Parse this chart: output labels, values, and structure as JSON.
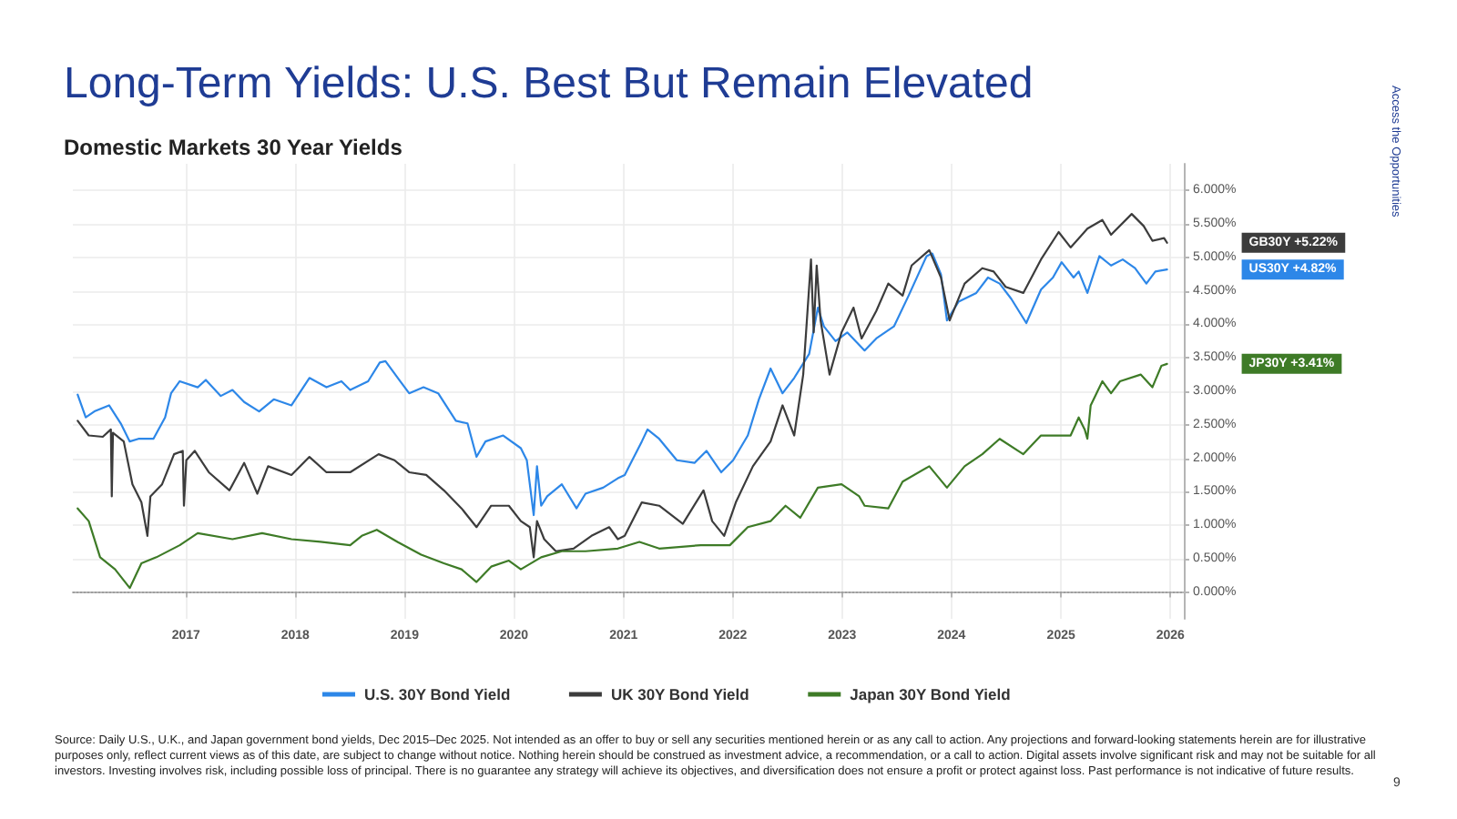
{
  "chart_data": {
    "type": "line",
    "title": "Long-Term Yields: U.S. Best But Remain Elevated",
    "subtitle": "Domestic Markets 30 Year Yields",
    "xlim": [
      "2015-12-20",
      "2026-02-15"
    ],
    "xticks": [
      "2017",
      "2018",
      "2019",
      "2020",
      "2021",
      "2022",
      "2023",
      "2024",
      "2025",
      "2026"
    ],
    "ylim": [
      -0.4,
      6.4
    ],
    "yticks": [
      {
        "value": 0,
        "label": "0.000%"
      },
      {
        "value": 0.5,
        "label": "0.500%"
      },
      {
        "value": 1,
        "label": "1.000%"
      },
      {
        "value": 1.5,
        "label": "1.500%"
      },
      {
        "value": 2,
        "label": "2.000%"
      },
      {
        "value": 2.5,
        "label": "2.500%"
      },
      {
        "value": 3,
        "label": "3.000%"
      },
      {
        "value": 3.5,
        "label": "3.500%"
      },
      {
        "value": 4,
        "label": "4.000%"
      },
      {
        "value": 4.5,
        "label": "4.500%"
      },
      {
        "value": 5,
        "label": "5.000%"
      },
      {
        "value": 5.5,
        "label": "5.500%"
      },
      {
        "value": 6,
        "label": "6.000%"
      }
    ],
    "grid": true,
    "legend": "bottom",
    "marker": "none",
    "series": [
      {
        "name": "U.S. 30Y Bond Yield",
        "color": "#2d87e8",
        "x": [
          "2016-01-05",
          "2016-02-01",
          "2016-03-01",
          "2016-04-19",
          "2016-05-28",
          "2016-06-27",
          "2016-07-26",
          "2016-09-14",
          "2016-10-23",
          "2016-11-12",
          "2016-12-11",
          "2017-02-09",
          "2017-03-08",
          "2017-04-27",
          "2017-06-05",
          "2017-07-14",
          "2017-09-02",
          "2017-10-21",
          "2017-12-19",
          "2018-02-17",
          "2018-04-15",
          "2018-06-04",
          "2018-07-03",
          "2018-09-01",
          "2018-10-10",
          "2018-10-29",
          "2018-12-17",
          "2019-01-16",
          "2019-03-05",
          "2019-04-23",
          "2019-06-21",
          "2019-07-30",
          "2019-08-29",
          "2019-09-28",
          "2019-11-26",
          "2020-01-24",
          "2020-02-13",
          "2020-03-07",
          "2020-03-18",
          "2020-04-01",
          "2020-04-21",
          "2020-06-09",
          "2020-07-28",
          "2020-08-27",
          "2020-10-25",
          "2020-12-13",
          "2021-01-05",
          "2021-03-03",
          "2021-03-22",
          "2021-04-30",
          "2021-06-28",
          "2021-08-26",
          "2021-10-05",
          "2021-11-23",
          "2022-01-02",
          "2022-02-20",
          "2022-03-29",
          "2022-05-07",
          "2022-06-16",
          "2022-07-25",
          "2022-09-13",
          "2022-10-12",
          "2022-11-01",
          "2022-12-10",
          "2023-01-18",
          "2023-03-17",
          "2023-04-25",
          "2023-06-23",
          "2023-08-11",
          "2023-10-10",
          "2023-10-29",
          "2023-11-27",
          "2023-12-17",
          "2024-01-25",
          "2024-03-24",
          "2024-05-02",
          "2024-06-10",
          "2024-07-19",
          "2024-09-07",
          "2024-10-26",
          "2024-12-05",
          "2025-01-03",
          "2025-02-12",
          "2025-03-01",
          "2025-03-30",
          "2025-05-09",
          "2025-06-17",
          "2025-07-26",
          "2025-09-05",
          "2025-10-13",
          "2025-11-12",
          "2025-12-21"
        ],
        "values": [
          2.95,
          2.61,
          2.7,
          2.79,
          2.52,
          2.25,
          2.29,
          2.29,
          2.61,
          2.97,
          3.15,
          3.06,
          3.17,
          2.93,
          3.02,
          2.84,
          2.7,
          2.88,
          2.79,
          3.2,
          3.06,
          3.15,
          3.02,
          3.15,
          3.43,
          3.45,
          3.15,
          2.97,
          3.06,
          2.97,
          2.56,
          2.52,
          2.02,
          2.25,
          2.34,
          2.15,
          1.97,
          1.15,
          1.88,
          1.29,
          1.43,
          1.61,
          1.25,
          1.47,
          1.56,
          1.7,
          1.75,
          2.25,
          2.43,
          2.29,
          1.97,
          1.93,
          2.11,
          1.79,
          1.97,
          2.34,
          2.88,
          3.34,
          2.97,
          3.2,
          3.56,
          4.25,
          3.97,
          3.75,
          3.88,
          3.61,
          3.79,
          3.97,
          4.43,
          5.02,
          5.06,
          4.75,
          4.06,
          4.34,
          4.47,
          4.7,
          4.61,
          4.38,
          4.02,
          4.52,
          4.7,
          4.93,
          4.7,
          4.79,
          4.47,
          5.02,
          4.88,
          4.97,
          4.84,
          4.61,
          4.79,
          4.82
        ]
      },
      {
        "name": "UK 30Y Bond Yield",
        "color": "#3c3c3c",
        "x": [
          "2016-01-05",
          "2016-02-11",
          "2016-03-29",
          "2016-04-25",
          "2016-04-28",
          "2016-05-02",
          "2016-06-07",
          "2016-07-06",
          "2016-08-05",
          "2016-08-25",
          "2016-09-04",
          "2016-10-13",
          "2016-11-22",
          "2016-12-21",
          "2016-12-25",
          "2017-01-02",
          "2017-01-30",
          "2017-03-18",
          "2017-05-26",
          "2017-07-14",
          "2017-08-27",
          "2017-10-02",
          "2017-12-19",
          "2018-02-17",
          "2018-04-15",
          "2018-07-03",
          "2018-10-06",
          "2018-11-28",
          "2019-01-16",
          "2019-03-14",
          "2019-05-12",
          "2019-07-10",
          "2019-08-29",
          "2019-10-17",
          "2019-12-15",
          "2020-01-24",
          "2020-02-23",
          "2020-03-07",
          "2020-03-18",
          "2020-04-11",
          "2020-05-20",
          "2020-07-18",
          "2020-09-16",
          "2020-11-14",
          "2020-12-13",
          "2021-01-05",
          "2021-03-03",
          "2021-04-30",
          "2021-07-18",
          "2021-09-25",
          "2021-10-24",
          "2021-12-03",
          "2022-01-11",
          "2022-03-09",
          "2022-05-07",
          "2022-06-16",
          "2022-07-25",
          "2022-08-24",
          "2022-09-19",
          "2022-09-28",
          "2022-10-08",
          "2022-10-21",
          "2022-11-20",
          "2022-12-30",
          "2023-02-08",
          "2023-03-07",
          "2023-04-25",
          "2023-06-04",
          "2023-07-22",
          "2023-08-21",
          "2023-10-19",
          "2023-11-27",
          "2023-12-26",
          "2024-02-14",
          "2024-04-13",
          "2024-05-21",
          "2024-06-30",
          "2024-08-28",
          "2024-10-26",
          "2024-12-24",
          "2025-02-02",
          "2025-03-30",
          "2025-05-19",
          "2025-06-17",
          "2025-08-25",
          "2025-10-04",
          "2025-11-02",
          "2025-12-11",
          "2025-12-21"
        ],
        "values": [
          2.56,
          2.34,
          2.32,
          2.43,
          1.43,
          2.38,
          2.25,
          1.61,
          1.34,
          0.84,
          1.43,
          1.61,
          2.06,
          2.11,
          1.29,
          1.97,
          2.11,
          1.79,
          1.52,
          1.93,
          1.47,
          1.88,
          1.75,
          2.02,
          1.79,
          1.79,
          2.06,
          1.97,
          1.79,
          1.75,
          1.52,
          1.25,
          0.97,
          1.29,
          1.29,
          1.06,
          0.97,
          0.52,
          1.06,
          0.79,
          0.61,
          0.65,
          0.84,
          0.97,
          0.79,
          0.84,
          1.34,
          1.29,
          1.02,
          1.52,
          1.06,
          0.84,
          1.34,
          1.88,
          2.25,
          2.79,
          2.34,
          3.25,
          4.97,
          3.88,
          4.88,
          4.06,
          3.25,
          3.88,
          4.25,
          3.79,
          4.2,
          4.61,
          4.43,
          4.88,
          5.11,
          4.7,
          4.06,
          4.61,
          4.84,
          4.79,
          4.56,
          4.47,
          4.97,
          5.38,
          5.15,
          5.43,
          5.56,
          5.34,
          5.65,
          5.47,
          5.25,
          5.29,
          5.22
        ]
      },
      {
        "name": "Japan 30Y Bond Yield",
        "color": "#3e7b27",
        "x": [
          "2016-01-05",
          "2016-02-11",
          "2016-03-20",
          "2016-05-09",
          "2016-06-27",
          "2016-08-05",
          "2016-09-24",
          "2016-12-11",
          "2017-02-09",
          "2017-06-05",
          "2017-09-12",
          "2017-12-19",
          "2018-03-26",
          "2018-07-03",
          "2018-08-11",
          "2018-09-30",
          "2018-12-08",
          "2019-02-25",
          "2019-05-12",
          "2019-07-10",
          "2019-08-29",
          "2019-10-17",
          "2019-12-15",
          "2020-01-24",
          "2020-04-01",
          "2020-06-09",
          "2020-08-27",
          "2020-12-13",
          "2021-02-23",
          "2021-04-30",
          "2021-09-16",
          "2021-12-22",
          "2022-02-20",
          "2022-05-07",
          "2022-06-26",
          "2022-08-14",
          "2022-10-12",
          "2022-12-30",
          "2023-02-27",
          "2023-03-17",
          "2023-06-04",
          "2023-07-22",
          "2023-10-19",
          "2023-12-17",
          "2024-02-14",
          "2024-04-13",
          "2024-06-10",
          "2024-08-28",
          "2024-10-26",
          "2025-02-02",
          "2025-03-01",
          "2025-03-21",
          "2025-03-30",
          "2025-04-10",
          "2025-05-19",
          "2025-06-17",
          "2025-07-17",
          "2025-09-24",
          "2025-11-02",
          "2025-12-02",
          "2025-12-21"
        ],
        "values": [
          1.25,
          1.06,
          0.52,
          0.34,
          0.06,
          0.43,
          0.52,
          0.7,
          0.88,
          0.79,
          0.88,
          0.79,
          0.75,
          0.7,
          0.84,
          0.93,
          0.75,
          0.56,
          0.43,
          0.34,
          0.15,
          0.38,
          0.47,
          0.34,
          0.52,
          0.61,
          0.61,
          0.65,
          0.75,
          0.65,
          0.7,
          0.7,
          0.97,
          1.06,
          1.29,
          1.11,
          1.56,
          1.61,
          1.43,
          1.29,
          1.25,
          1.65,
          1.88,
          1.56,
          1.88,
          2.06,
          2.29,
          2.06,
          2.34,
          2.34,
          2.61,
          2.43,
          2.29,
          2.79,
          3.15,
          2.97,
          3.15,
          3.25,
          3.06,
          3.38,
          3.41
        ]
      }
    ],
    "ref_lines": [
      {
        "axis": "y",
        "value": 0,
        "color": "#9e9e9e",
        "line_style": "dotted"
      }
    ],
    "annotations": [
      "Access the Opportunities",
      "Source: Daily U.S., U.K., and Japan government bond yields, Dec 2015–Dec 2025. Not intended as an offer to buy or sell any securities mentioned herein or as any call to action. Any projections and forward-looking statements herein are for illustrative purposes only, reflect current views as of this date, are subject to change without notice. Nothing herein should be construed as investment advice, a recommendation, or a call to action. Digital assets involve significant risk and may not be suitable for all investors. Investing involves risk, including possible loss of principal. There is no guarantee any strategy will achieve its objectives, and diversification does not ensure a profit or protect against loss. Past performance is not indicative of future results.",
      "9",
      "US30Y +4.82%",
      "GB30Y +5.22%",
      "JP30Y +3.41%"
    ]
  }
}
